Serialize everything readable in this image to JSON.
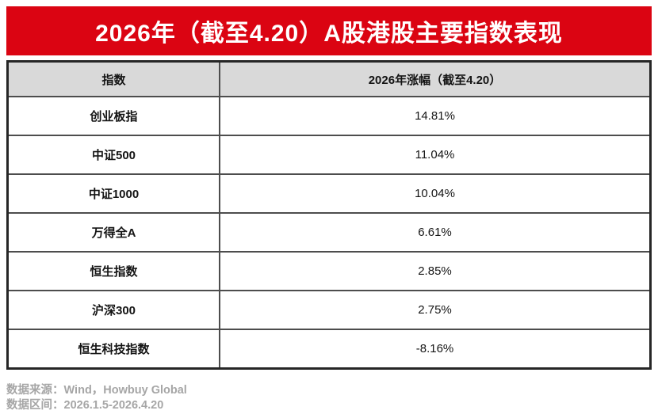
{
  "banner": {
    "title": "2026年（截至4.20）A股港股主要指数表现",
    "bg_color": "#db0412",
    "text_color": "#ffffff"
  },
  "table": {
    "columns": [
      "指数",
      "2026年涨幅（截至4.20）"
    ],
    "rows": [
      {
        "index": "创业板指",
        "value": "14.81%"
      },
      {
        "index": "中证500",
        "value": "11.04%"
      },
      {
        "index": "中证1000",
        "value": "10.04%"
      },
      {
        "index": "万得全A",
        "value": "6.61%"
      },
      {
        "index": "恒生指数",
        "value": "2.85%"
      },
      {
        "index": "沪深300",
        "value": "2.75%"
      },
      {
        "index": "恒生科技指数",
        "value": "-8.16%"
      }
    ],
    "header_bg_color": "#d9d9d9",
    "grid_color": "#4d4d4d"
  },
  "footer": {
    "source": "数据来源：Wind，Howbuy Global",
    "period": "数据区间：2026.1.5-2026.4.20"
  },
  "chart_data": {
    "type": "table",
    "title": "2026年（截至4.20）A股港股主要指数表现",
    "columns": [
      "指数",
      "2026年涨幅（截至4.20）"
    ],
    "rows": [
      [
        "创业板指",
        "14.81%"
      ],
      [
        "中证500",
        "11.04%"
      ],
      [
        "中证1000",
        "10.04%"
      ],
      [
        "万得全A",
        "6.61%"
      ],
      [
        "恒生指数",
        "2.85%"
      ],
      [
        "沪深300",
        "2.75%"
      ],
      [
        "恒生科技指数",
        "-8.16%"
      ]
    ],
    "values_pct": [
      14.81,
      11.04,
      10.04,
      6.61,
      2.85,
      2.75,
      -8.16
    ],
    "source": "Wind，Howbuy Global",
    "period": "2026.1.5-2026.4.20"
  }
}
